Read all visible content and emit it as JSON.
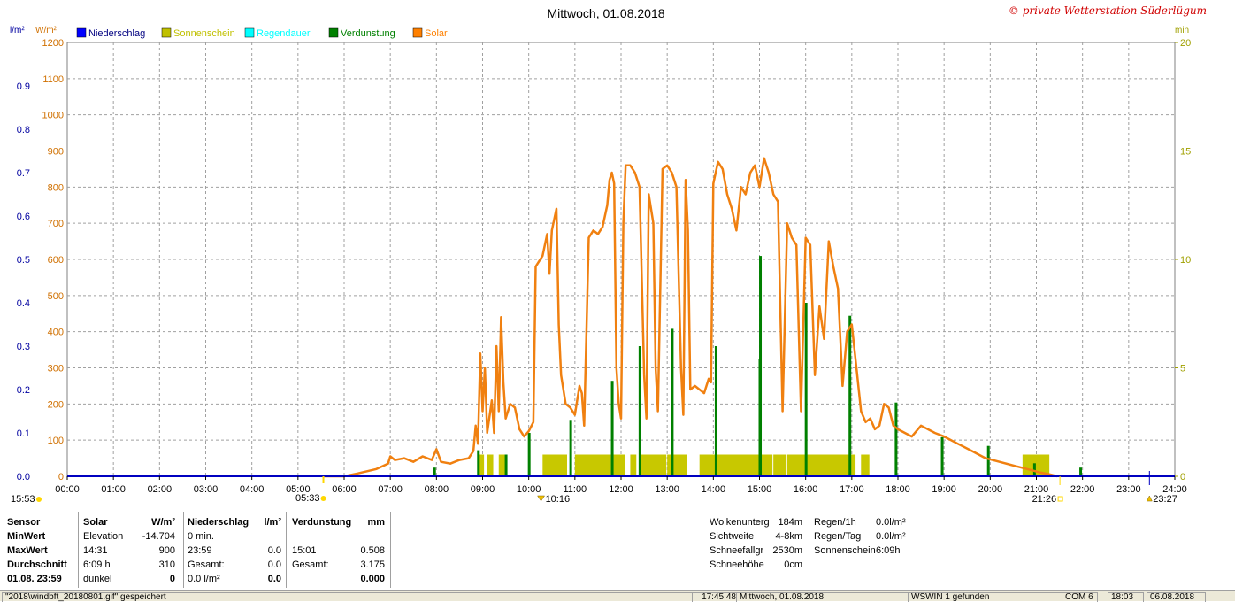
{
  "title": "Mittwoch, 01.08.2018",
  "watermark": "© private Wetterstation Süderlügum",
  "axis_units": {
    "left_precip": "l/m²",
    "left_solar": "W/m²",
    "right_minutes": "min"
  },
  "legend": [
    {
      "label": "Niederschlag",
      "color": "#0000ff"
    },
    {
      "label": "Sonnenschein",
      "color": "#c0c000"
    },
    {
      "label": "Regendauer",
      "color": "#00ffff"
    },
    {
      "label": "Verdunstung",
      "color": "#008000"
    },
    {
      "label": "Solar",
      "color": "#ff8000"
    }
  ],
  "colors": {
    "solar": "#f08010",
    "sunshine": "#c8c800",
    "evaporation": "#008000",
    "precip": "#0000c0",
    "grid": "#a0a0a0"
  },
  "markers": {
    "left_time": "15:53",
    "sunrise": "05:33",
    "max_solar_time": "10:16",
    "sunset": "21:26",
    "right_time": "23:27"
  },
  "chart_data": {
    "type": "line",
    "title": "Mittwoch, 01.08.2018",
    "x_ticks": [
      "00:00",
      "01:00",
      "02:00",
      "03:00",
      "04:00",
      "05:00",
      "06:00",
      "07:00",
      "08:00",
      "09:00",
      "10:00",
      "11:00",
      "12:00",
      "13:00",
      "14:00",
      "15:00",
      "16:00",
      "17:00",
      "18:00",
      "19:00",
      "20:00",
      "21:00",
      "22:00",
      "23:00",
      "24:00"
    ],
    "xlim_hours": [
      0,
      24
    ],
    "y_axes": {
      "precip": {
        "unit": "l/m²",
        "ylim": [
          0,
          1.0
        ],
        "ticks": [
          "0.0",
          "0.1",
          "0.2",
          "0.3",
          "0.4",
          "0.5",
          "0.6",
          "0.7",
          "0.8",
          "0.9"
        ]
      },
      "solar": {
        "unit": "W/m²",
        "ylim": [
          0,
          1200
        ],
        "ticks": [
          "0",
          "100",
          "200",
          "300",
          "400",
          "500",
          "600",
          "700",
          "800",
          "900",
          "1000",
          "1100",
          "1200"
        ]
      },
      "minutes": {
        "unit": "min",
        "ylim": [
          0,
          20
        ],
        "ticks": [
          "0",
          "5",
          "10",
          "15",
          "20"
        ]
      }
    },
    "grid": true,
    "legend_position": "top-left",
    "series": [
      {
        "name": "Solar",
        "axis": "solar",
        "kind": "line",
        "points": [
          [
            5.55,
            0
          ],
          [
            6.0,
            0
          ],
          [
            6.3,
            8
          ],
          [
            6.7,
            20
          ],
          [
            6.95,
            35
          ],
          [
            7.0,
            55
          ],
          [
            7.1,
            45
          ],
          [
            7.3,
            50
          ],
          [
            7.5,
            40
          ],
          [
            7.7,
            55
          ],
          [
            7.9,
            45
          ],
          [
            8.0,
            75
          ],
          [
            8.1,
            40
          ],
          [
            8.3,
            35
          ],
          [
            8.5,
            45
          ],
          [
            8.7,
            50
          ],
          [
            8.8,
            70
          ],
          [
            8.85,
            140
          ],
          [
            8.9,
            90
          ],
          [
            8.95,
            340
          ],
          [
            9.0,
            180
          ],
          [
            9.05,
            300
          ],
          [
            9.1,
            120
          ],
          [
            9.2,
            210
          ],
          [
            9.25,
            120
          ],
          [
            9.3,
            360
          ],
          [
            9.35,
            180
          ],
          [
            9.4,
            440
          ],
          [
            9.45,
            260
          ],
          [
            9.5,
            160
          ],
          [
            9.6,
            200
          ],
          [
            9.7,
            190
          ],
          [
            9.8,
            130
          ],
          [
            9.9,
            110
          ],
          [
            10.0,
            125
          ],
          [
            10.1,
            150
          ],
          [
            10.15,
            580
          ],
          [
            10.2,
            590
          ],
          [
            10.3,
            610
          ],
          [
            10.4,
            670
          ],
          [
            10.45,
            560
          ],
          [
            10.5,
            680
          ],
          [
            10.6,
            740
          ],
          [
            10.65,
            420
          ],
          [
            10.7,
            280
          ],
          [
            10.8,
            200
          ],
          [
            10.9,
            190
          ],
          [
            11.0,
            170
          ],
          [
            11.1,
            250
          ],
          [
            11.15,
            230
          ],
          [
            11.2,
            140
          ],
          [
            11.3,
            660
          ],
          [
            11.4,
            680
          ],
          [
            11.5,
            670
          ],
          [
            11.6,
            690
          ],
          [
            11.7,
            750
          ],
          [
            11.75,
            820
          ],
          [
            11.8,
            840
          ],
          [
            11.85,
            810
          ],
          [
            11.9,
            300
          ],
          [
            11.95,
            200
          ],
          [
            12.0,
            160
          ],
          [
            12.05,
            700
          ],
          [
            12.1,
            860
          ],
          [
            12.2,
            860
          ],
          [
            12.3,
            840
          ],
          [
            12.4,
            800
          ],
          [
            12.5,
            280
          ],
          [
            12.55,
            160
          ],
          [
            12.6,
            780
          ],
          [
            12.7,
            700
          ],
          [
            12.75,
            300
          ],
          [
            12.8,
            180
          ],
          [
            12.9,
            850
          ],
          [
            13.0,
            860
          ],
          [
            13.1,
            840
          ],
          [
            13.2,
            800
          ],
          [
            13.3,
            300
          ],
          [
            13.35,
            170
          ],
          [
            13.4,
            820
          ],
          [
            13.45,
            680
          ],
          [
            13.5,
            240
          ],
          [
            13.6,
            250
          ],
          [
            13.8,
            230
          ],
          [
            13.9,
            270
          ],
          [
            13.95,
            260
          ],
          [
            14.0,
            810
          ],
          [
            14.1,
            870
          ],
          [
            14.2,
            850
          ],
          [
            14.3,
            780
          ],
          [
            14.4,
            740
          ],
          [
            14.5,
            680
          ],
          [
            14.6,
            800
          ],
          [
            14.7,
            780
          ],
          [
            14.8,
            840
          ],
          [
            14.9,
            860
          ],
          [
            15.0,
            800
          ],
          [
            15.1,
            880
          ],
          [
            15.2,
            840
          ],
          [
            15.3,
            780
          ],
          [
            15.4,
            760
          ],
          [
            15.5,
            180
          ],
          [
            15.6,
            700
          ],
          [
            15.7,
            660
          ],
          [
            15.8,
            640
          ],
          [
            15.9,
            180
          ],
          [
            16.0,
            660
          ],
          [
            16.1,
            640
          ],
          [
            16.2,
            280
          ],
          [
            16.3,
            470
          ],
          [
            16.4,
            380
          ],
          [
            16.5,
            650
          ],
          [
            16.6,
            580
          ],
          [
            16.7,
            520
          ],
          [
            16.8,
            250
          ],
          [
            16.9,
            400
          ],
          [
            17.0,
            420
          ],
          [
            17.1,
            300
          ],
          [
            17.2,
            180
          ],
          [
            17.3,
            150
          ],
          [
            17.4,
            160
          ],
          [
            17.5,
            130
          ],
          [
            17.6,
            140
          ],
          [
            17.7,
            200
          ],
          [
            17.8,
            190
          ],
          [
            17.9,
            140
          ],
          [
            18.0,
            130
          ],
          [
            18.3,
            110
          ],
          [
            18.5,
            140
          ],
          [
            18.8,
            120
          ],
          [
            19.0,
            110
          ],
          [
            19.3,
            90
          ],
          [
            19.6,
            70
          ],
          [
            19.9,
            50
          ],
          [
            20.2,
            40
          ],
          [
            20.5,
            30
          ],
          [
            20.8,
            20
          ],
          [
            21.1,
            10
          ],
          [
            21.3,
            5
          ],
          [
            21.45,
            0
          ]
        ]
      },
      {
        "name": "Sonnenschein",
        "axis": "minutes",
        "kind": "bars",
        "intervals": [
          [
            8.9,
            9.05,
            1.0
          ],
          [
            9.1,
            9.25,
            1.0
          ],
          [
            9.35,
            9.55,
            1.0
          ],
          [
            10.3,
            10.85,
            1.0
          ],
          [
            11.0,
            11.8,
            1.0
          ],
          [
            11.8,
            12.1,
            1.0
          ],
          [
            12.2,
            12.35,
            1.0
          ],
          [
            12.4,
            13.0,
            1.0
          ],
          [
            13.0,
            13.45,
            1.0
          ],
          [
            13.7,
            15.3,
            1.0
          ],
          [
            15.3,
            15.6,
            1.0
          ],
          [
            15.6,
            17.1,
            1.0
          ],
          [
            17.2,
            17.4,
            1.0
          ],
          [
            20.7,
            21.3,
            1.0
          ]
        ]
      },
      {
        "name": "Verdunstung",
        "axis": "precip",
        "kind": "spikes",
        "points": [
          [
            7.95,
            0.02
          ],
          [
            8.9,
            0.06
          ],
          [
            9.5,
            0.05
          ],
          [
            10.0,
            0.1
          ],
          [
            10.9,
            0.13
          ],
          [
            11.8,
            0.22
          ],
          [
            12.4,
            0.3
          ],
          [
            13.1,
            0.34
          ],
          [
            14.05,
            0.3
          ],
          [
            15.0,
            0.27
          ],
          [
            15.01,
            0.508
          ],
          [
            16.0,
            0.4
          ],
          [
            16.95,
            0.37
          ],
          [
            17.95,
            0.17
          ],
          [
            18.95,
            0.09
          ],
          [
            19.95,
            0.07
          ],
          [
            20.95,
            0.03
          ],
          [
            21.95,
            0.02
          ]
        ]
      },
      {
        "name": "Niederschlag",
        "axis": "precip",
        "kind": "line",
        "points": [
          [
            0,
            0.0
          ],
          [
            24,
            0.0
          ]
        ]
      }
    ]
  },
  "stats": {
    "rows": [
      {
        "label": "Sensor",
        "solar_a": "Solar",
        "solar_b": "W/m²",
        "nied_a": "Niederschlag",
        "nied_b": "l/m²",
        "verd_a": "Verdunstung",
        "verd_b": "mm"
      },
      {
        "label": "MinWert",
        "solar_a": "Elevation",
        "solar_b": "-14.704",
        "nied_a": "0 min.",
        "nied_b": "",
        "verd_a": "",
        "verd_b": ""
      },
      {
        "label": "MaxWert",
        "solar_a": "14:31",
        "solar_b": "900",
        "nied_a": "23:59",
        "nied_b": "0.0",
        "verd_a": "15:01",
        "verd_b": "0.508"
      },
      {
        "label": "Durchschnitt",
        "solar_a": "6:09 h",
        "solar_b": "310",
        "nied_a": "Gesamt:",
        "nied_b": "0.0",
        "verd_a": "Gesamt:",
        "verd_b": "3.175"
      },
      {
        "label": "01.08. 23:59",
        "solar_a": "dunkel",
        "solar_b": "0",
        "nied_a": "0.0 l/m²",
        "nied_b": "0.0",
        "verd_a": "",
        "verd_b": "0.000"
      }
    ],
    "cloud": [
      {
        "label": "Wolkenunterg",
        "value": "184m"
      },
      {
        "label": "Sichtweite",
        "value": "4-8km"
      },
      {
        "label": "Schneefallgr",
        "value": "2530m"
      },
      {
        "label": "Schneehöhe",
        "value": "0cm"
      }
    ],
    "rain": [
      {
        "label": "Regen/1h",
        "value": "0.0l/m²"
      },
      {
        "label": "Regen/Tag",
        "value": "0.0l/m²"
      },
      {
        "label": "Sonnenschein",
        "value": "6:09h"
      }
    ]
  },
  "statusbar": {
    "file": "\"2018\\windbft_20180801.gif\" gespeichert",
    "time": "17:45:48",
    "date": "Mittwoch, 01.08.2018",
    "device": "WSWIN 1 gefunden",
    "port": "COM 6",
    "clock": "18:03",
    "today": "06.08.2018"
  }
}
